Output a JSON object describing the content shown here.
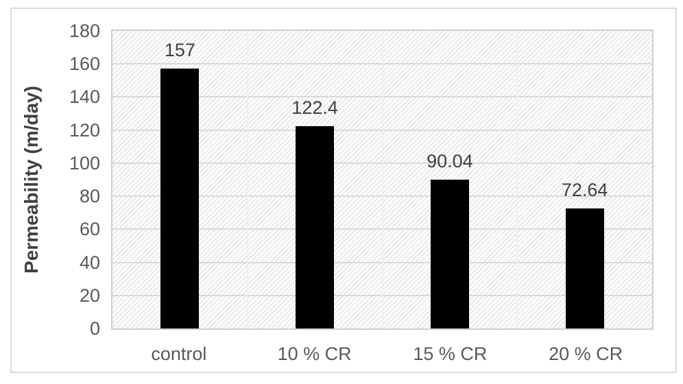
{
  "chart_data": {
    "type": "bar",
    "title": "",
    "categories": [
      "control",
      "10 % CR",
      "15 % CR",
      "20 % CR"
    ],
    "values": [
      157,
      122.4,
      90.04,
      72.64
    ],
    "data_labels": [
      "157",
      "122.4",
      "90.04",
      "72.64"
    ],
    "xlabel": "",
    "ylabel": "Permeability (m/day)",
    "ylim": [
      0,
      180
    ],
    "ytick_interval": 20,
    "ytick_labels": [
      "0",
      "20",
      "40",
      "60",
      "80",
      "100",
      "120",
      "140",
      "160",
      "180"
    ],
    "legend": "none",
    "grid": {
      "horizontal": true,
      "vertical_category": true
    },
    "plot_area_pattern": "light-upward-diagonal-hatch",
    "colors": {
      "bar": "#000000",
      "gridline_horizontal": "#d9d9d9",
      "gridline_vertical": "#efefef",
      "plot_border": "#cfcfcf",
      "chart_border": "#d9d9d9",
      "tick_label": "#595959",
      "data_label": "#404040",
      "axis_title": "#404040",
      "hatch_stripe": "#e8e8e8",
      "background": "#ffffff"
    }
  }
}
